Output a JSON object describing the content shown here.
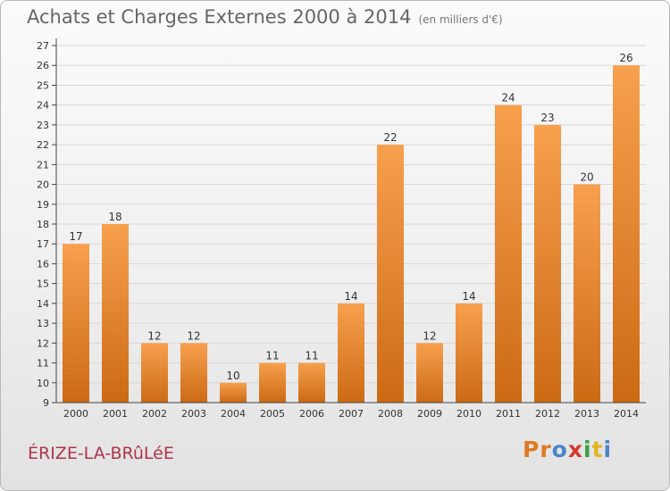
{
  "header": {
    "title": "Achats et Charges Externes 2000 à 2014",
    "unit": "(en milliers d'€)"
  },
  "footer": {
    "commune": "ÉRIZE-LA-BRûLéE",
    "logo_text": "Proxiti",
    "logo_colors": [
      "#e07a22",
      "#e07a22",
      "#4a86c8",
      "#d23a2c",
      "#3aa246",
      "#e0b420",
      "#4a86c8"
    ]
  },
  "colors": {
    "bar_top": "#f7a04e",
    "bar_bottom": "#cc6a14",
    "grid": "#d8d8d8",
    "axis": "#444444",
    "label": "#333333"
  },
  "chart_data": {
    "type": "bar",
    "title": "Achats et Charges Externes 2000 à 2014",
    "subtitle": "(en milliers d'€)",
    "xlabel": "",
    "ylabel": "",
    "categories": [
      "2000",
      "2001",
      "2002",
      "2003",
      "2004",
      "2005",
      "2006",
      "2007",
      "2008",
      "2009",
      "2010",
      "2011",
      "2012",
      "2013",
      "2014"
    ],
    "values": [
      17,
      18,
      12,
      12,
      10,
      11,
      11,
      14,
      22,
      12,
      14,
      24,
      23,
      20,
      26
    ],
    "ylim": [
      9,
      27
    ],
    "yticks": [
      "9",
      "10",
      "11",
      "12",
      "13",
      "14",
      "15",
      "16",
      "17",
      "18",
      "19",
      "20",
      "21",
      "22",
      "23",
      "24",
      "25",
      "26",
      "27"
    ],
    "grid": true,
    "legend": "none"
  }
}
